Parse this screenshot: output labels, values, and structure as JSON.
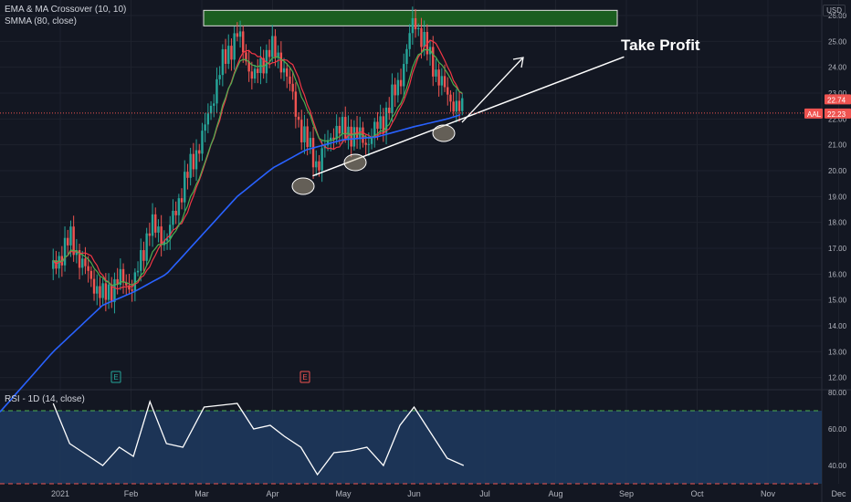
{
  "indicators": {
    "ema_ma": "EMA & MA Crossover (10, 10)",
    "smma": "SMMA (80, close)",
    "rsi": "RSI - 1D (14, close)"
  },
  "currency": "USD",
  "annotation": "Take Profit",
  "symbol": "AAL",
  "price_badges": {
    "upper": "22.74",
    "lower": "22.23"
  },
  "earnings_markers": [
    "E",
    "E"
  ],
  "colors": {
    "background": "#131722",
    "up": "#26a69a",
    "down": "#ef5350",
    "smma": "#2962ff",
    "ema": "#4caf50",
    "ma": "#f23645",
    "rsi_band": "#1e3a5f",
    "take_profit_box": "#1b5e20"
  },
  "chart_data": {
    "type": "line",
    "series_kind": "candlestick price chart with overlays",
    "y_ticks": [
      "26.00",
      "25.00",
      "24.00",
      "23.00",
      "22.00",
      "21.00",
      "20.00",
      "19.00",
      "18.00",
      "17.00",
      "16.00",
      "15.00",
      "14.00",
      "13.00",
      "12.00"
    ],
    "x_ticks": [
      "2021",
      "Feb",
      "Mar",
      "Apr",
      "May",
      "Jun",
      "Jul",
      "Aug",
      "Sep",
      "Oct",
      "Nov",
      "Dec"
    ],
    "ylim": [
      11.6,
      26.6
    ],
    "take_profit_zone": [
      25.6,
      26.2
    ],
    "trendline": {
      "from": {
        "date": "Apr 18",
        "price": 19.8
      },
      "to": {
        "date": "Aug 30",
        "price": 24.4
      }
    },
    "price": {
      "x": [
        "Dec 28",
        "Jan 5",
        "Jan 12",
        "Jan 19",
        "Jan 26",
        "Feb 2",
        "Feb 9",
        "Feb 16",
        "Feb 23",
        "Mar 2",
        "Mar 9",
        "Mar 16",
        "Mar 23",
        "Mar 30",
        "Apr 6",
        "Apr 13",
        "Apr 20",
        "Apr 27",
        "May 4",
        "May 11",
        "May 18",
        "May 25",
        "Jun 1",
        "Jun 8",
        "Jun 15",
        "Jun 22"
      ],
      "close": [
        16.2,
        17.4,
        16.1,
        15.1,
        15.8,
        15.5,
        17.9,
        17.3,
        19.4,
        21.5,
        24.0,
        25.3,
        23.5,
        24.8,
        24.0,
        21.6,
        20.2,
        21.6,
        21.5,
        21.1,
        22.0,
        23.5,
        25.9,
        24.3,
        22.9,
        22.23
      ]
    },
    "smma": {
      "x": [
        "Dec 28",
        "Jan 19",
        "Feb 2",
        "Feb 16",
        "Mar 2",
        "Mar 16",
        "Apr 1",
        "Apr 15",
        "May 1",
        "May 15",
        "Jun 1",
        "Jun 15",
        "Jun 22"
      ],
      "values": [
        13.0,
        14.8,
        15.3,
        16.0,
        17.6,
        19.0,
        20.1,
        20.8,
        21.2,
        21.3,
        21.7,
        22.0,
        22.2
      ]
    },
    "rsi": {
      "ylim": [
        30,
        80
      ],
      "levels": [
        70,
        30
      ],
      "y_ticks": [
        "80.00",
        "60.00",
        "40.00"
      ],
      "x": [
        "Dec 28",
        "Jan 5",
        "Jan 12",
        "Jan 19",
        "Jan 26",
        "Feb 2",
        "Feb 9",
        "Feb 16",
        "Feb 23",
        "Mar 2",
        "Mar 9",
        "Mar 16",
        "Mar 23",
        "Mar 30",
        "Apr 6",
        "Apr 13",
        "Apr 20",
        "Apr 27",
        "May 4",
        "May 11",
        "May 18",
        "May 25",
        "Jun 1",
        "Jun 8",
        "Jun 15",
        "Jun 22"
      ],
      "values": [
        74,
        52,
        46,
        40,
        50,
        45,
        75,
        52,
        50,
        72,
        73,
        74,
        60,
        62,
        56,
        50,
        35,
        47,
        48,
        50,
        40,
        62,
        72,
        58,
        44,
        40
      ]
    }
  }
}
